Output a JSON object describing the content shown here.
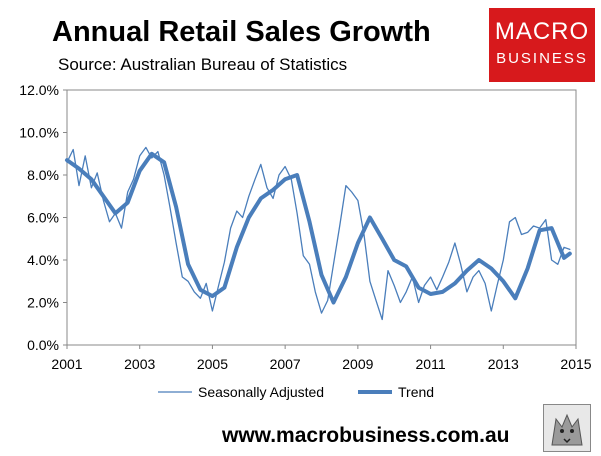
{
  "header": {
    "title": "Annual Retail Sales Growth",
    "subtitle": "Source: Australian Bureau of Statistics"
  },
  "logo": {
    "line1": "MACRO",
    "line2": "BUSINESS",
    "color": "#d7191c"
  },
  "footer": {
    "url": "www.macrobusiness.com.au"
  },
  "chart_data": {
    "type": "line",
    "title": "Annual Retail Sales Growth",
    "xlabel": "",
    "ylabel": "",
    "xlim": [
      2001,
      2015
    ],
    "ylim": [
      0,
      12
    ],
    "xticks": [
      "2001",
      "2003",
      "2005",
      "2007",
      "2009",
      "2011",
      "2013",
      "2015"
    ],
    "yticks": [
      "0.0%",
      "2.0%",
      "4.0%",
      "6.0%",
      "8.0%",
      "10.0%",
      "12.0%"
    ],
    "grid": false,
    "legend_position": "bottom",
    "series_color": "#4a7ebb",
    "series": [
      {
        "name": "Seasonally Adjusted",
        "style": "thin",
        "x": [
          2001.0,
          2001.17,
          2001.33,
          2001.5,
          2001.67,
          2001.83,
          2002.0,
          2002.17,
          2002.33,
          2002.5,
          2002.67,
          2002.83,
          2003.0,
          2003.17,
          2003.33,
          2003.5,
          2003.67,
          2003.83,
          2004.0,
          2004.17,
          2004.33,
          2004.5,
          2004.67,
          2004.83,
          2005.0,
          2005.17,
          2005.33,
          2005.5,
          2005.67,
          2005.83,
          2006.0,
          2006.17,
          2006.33,
          2006.5,
          2006.67,
          2006.83,
          2007.0,
          2007.17,
          2007.33,
          2007.5,
          2007.67,
          2007.83,
          2008.0,
          2008.17,
          2008.33,
          2008.5,
          2008.67,
          2008.83,
          2009.0,
          2009.17,
          2009.33,
          2009.5,
          2009.67,
          2009.83,
          2010.0,
          2010.17,
          2010.33,
          2010.5,
          2010.67,
          2010.83,
          2011.0,
          2011.17,
          2011.33,
          2011.5,
          2011.67,
          2011.83,
          2012.0,
          2012.17,
          2012.33,
          2012.5,
          2012.67,
          2012.83,
          2013.0,
          2013.17,
          2013.33,
          2013.5,
          2013.67,
          2013.83,
          2014.0,
          2014.17,
          2014.33,
          2014.5,
          2014.67,
          2014.83
        ],
        "values": [
          8.6,
          9.2,
          7.5,
          8.9,
          7.4,
          8.1,
          6.8,
          5.8,
          6.2,
          5.5,
          7.2,
          7.8,
          8.9,
          9.3,
          8.8,
          9.1,
          8.0,
          6.5,
          4.8,
          3.2,
          3.0,
          2.5,
          2.2,
          2.9,
          1.6,
          2.8,
          3.9,
          5.5,
          6.3,
          6.0,
          7.0,
          7.8,
          8.5,
          7.4,
          6.9,
          8.0,
          8.4,
          7.8,
          6.2,
          4.2,
          3.8,
          2.5,
          1.5,
          2.1,
          3.8,
          5.6,
          7.5,
          7.2,
          6.8,
          5.2,
          3.0,
          2.1,
          1.2,
          3.5,
          2.8,
          2.0,
          2.5,
          3.2,
          2.0,
          2.8,
          3.2,
          2.6,
          3.2,
          3.9,
          4.8,
          3.8,
          2.5,
          3.2,
          3.5,
          2.9,
          1.6,
          2.8,
          4.0,
          5.8,
          6.0,
          5.2,
          5.3,
          5.6,
          5.5,
          5.9,
          4.0,
          3.8,
          4.6,
          4.5
        ]
      },
      {
        "name": "Trend",
        "style": "thick",
        "x": [
          2001.0,
          2001.33,
          2001.67,
          2002.0,
          2002.33,
          2002.67,
          2003.0,
          2003.33,
          2003.67,
          2004.0,
          2004.33,
          2004.67,
          2005.0,
          2005.33,
          2005.67,
          2006.0,
          2006.33,
          2006.67,
          2007.0,
          2007.33,
          2007.67,
          2008.0,
          2008.33,
          2008.67,
          2009.0,
          2009.33,
          2009.67,
          2010.0,
          2010.33,
          2010.67,
          2011.0,
          2011.33,
          2011.67,
          2012.0,
          2012.33,
          2012.67,
          2013.0,
          2013.33,
          2013.67,
          2014.0,
          2014.33,
          2014.67,
          2014.83
        ],
        "values": [
          8.7,
          8.3,
          7.8,
          7.0,
          6.2,
          6.7,
          8.2,
          9.0,
          8.6,
          6.5,
          3.8,
          2.6,
          2.3,
          2.7,
          4.6,
          6.0,
          6.9,
          7.3,
          7.8,
          8.0,
          5.8,
          3.3,
          2.0,
          3.2,
          4.8,
          6.0,
          5.0,
          4.0,
          3.7,
          2.7,
          2.4,
          2.5,
          2.9,
          3.5,
          4.0,
          3.6,
          3.0,
          2.2,
          3.6,
          5.4,
          5.5,
          4.1,
          4.3
        ]
      }
    ]
  }
}
